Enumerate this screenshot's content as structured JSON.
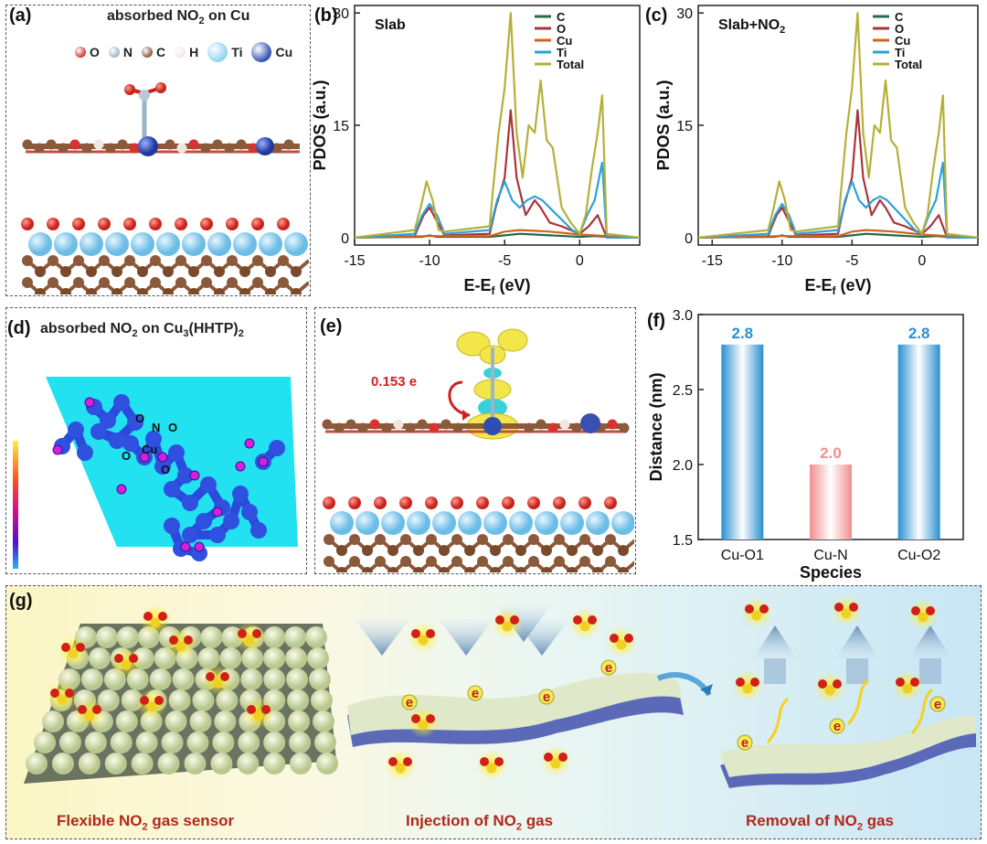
{
  "panels": {
    "a": {
      "label": "(a)",
      "title_pre": "absorbed NO",
      "title_sub": "2",
      "title_post": " on Cu",
      "legend": [
        {
          "name": "O",
          "color": "#d6342f"
        },
        {
          "name": "N",
          "color": "#9fb4c8"
        },
        {
          "name": "C",
          "color": "#8a5a3a"
        },
        {
          "name": "H",
          "color": "#f3e6e0"
        },
        {
          "name": "Ti",
          "color": "#8fd3f0"
        },
        {
          "name": "Cu",
          "color": "#2f4fb0"
        }
      ]
    },
    "b": {
      "label": "(b)"
    },
    "c": {
      "label": "(c)"
    },
    "d": {
      "label": "(d)",
      "title_pre": "absorbed NO",
      "title_sub1": "2",
      "title_mid": " on Cu",
      "title_sub2": "3",
      "title_post": "(HHTP)",
      "title_sub3": "2",
      "atom_labels": [
        "O",
        "N",
        "O",
        "O",
        "Cu",
        "O"
      ]
    },
    "e": {
      "label": "(e)",
      "charge": "0.153 e"
    },
    "f": {
      "label": "(f)"
    },
    "g": {
      "label": "(g)",
      "captions": [
        {
          "pre": "Flexible  NO",
          "sub": "2",
          "post": " gas sensor"
        },
        {
          "pre": "Injection of  NO",
          "sub": "2",
          "post": " gas"
        },
        {
          "pre": "Removal of  NO",
          "sub": "2",
          "post": " gas"
        }
      ],
      "electron": "e"
    }
  },
  "chart_data": [
    {
      "type": "line",
      "title": "Slab",
      "xlabel_pre": "E-E",
      "xlabel_sub": "f",
      "xlabel_post": " (eV)",
      "ylabel": "PDOS (a.u.)",
      "xlim": [
        -15,
        4
      ],
      "ylim": [
        -1,
        31
      ],
      "xticks": [
        -15,
        -10,
        -5,
        0
      ],
      "yticks": [
        0,
        15,
        30
      ],
      "legend_position": "top-right",
      "series": [
        {
          "name": "C",
          "color": "#1f6b4a",
          "x": [
            -15,
            -10.5,
            -10,
            -9.5,
            -6,
            -5,
            -4,
            -3,
            -2,
            -1,
            0,
            1,
            1.8,
            4
          ],
          "y": [
            0,
            0.1,
            0.3,
            0.1,
            0.1,
            0.3,
            0.5,
            0.4,
            0.3,
            0.2,
            0.1,
            0.2,
            0.1,
            0
          ]
        },
        {
          "name": "O",
          "color": "#a8343c",
          "x": [
            -15,
            -11,
            -10.4,
            -10,
            -9.6,
            -9,
            -6,
            -5.6,
            -5,
            -4.6,
            -4.2,
            -3.6,
            -3,
            -2.6,
            -2,
            -1.2,
            -0.6,
            0,
            0.6,
            1.2,
            1.6,
            1.8,
            4
          ],
          "y": [
            0,
            0.2,
            3,
            4,
            2.5,
            0.3,
            0.5,
            4,
            8,
            17,
            8,
            3,
            5,
            4,
            2,
            1.5,
            1,
            0.5,
            1.5,
            3,
            1,
            0,
            0
          ]
        },
        {
          "name": "Cu",
          "color": "#d4621e",
          "x": [
            -15,
            -10,
            -6,
            -5,
            -4,
            -3,
            -2,
            -1,
            0,
            1,
            1.8,
            4
          ],
          "y": [
            0,
            0.2,
            0.2,
            0.8,
            1,
            0.9,
            0.8,
            0.6,
            0.4,
            0.3,
            0.2,
            0
          ]
        },
        {
          "name": "Ti",
          "color": "#2aa3d8",
          "x": [
            -15,
            -11,
            -10.5,
            -10,
            -9.5,
            -9,
            -6,
            -5.5,
            -5,
            -4.5,
            -4,
            -3.5,
            -3,
            -2.5,
            -2,
            -1.5,
            -1,
            -0.5,
            0,
            0.5,
            1,
            1.5,
            1.8,
            4
          ],
          "y": [
            0,
            0.5,
            3,
            4.5,
            3,
            0.5,
            1,
            5,
            7.5,
            5,
            4,
            5,
            5.5,
            5,
            4,
            3,
            2,
            1,
            0.5,
            3,
            5,
            10,
            0,
            0
          ]
        },
        {
          "name": "Total",
          "color": "#b5b037",
          "x": [
            -15,
            -11,
            -10.6,
            -10.2,
            -9.8,
            -9.4,
            -9,
            -6,
            -5.8,
            -5.4,
            -5,
            -4.6,
            -4.2,
            -3.8,
            -3.4,
            -3,
            -2.6,
            -2.2,
            -1.8,
            -1.2,
            -0.6,
            0,
            0.4,
            0.8,
            1.2,
            1.5,
            1.8,
            4
          ],
          "y": [
            0,
            1,
            4,
            7.5,
            5,
            1,
            0.8,
            1.5,
            6,
            14,
            20,
            30,
            14,
            8,
            15,
            14,
            21,
            13,
            12,
            4,
            2,
            0.5,
            3,
            9,
            14,
            19,
            0.5,
            0
          ]
        }
      ]
    },
    {
      "type": "line",
      "title_pre": "Slab+NO",
      "title_sub": "2",
      "xlabel_pre": "E-E",
      "xlabel_sub": "f",
      "xlabel_post": " (eV)",
      "ylabel": "PDOS (a.u.)",
      "xlim": [
        -16,
        4
      ],
      "ylim": [
        -1,
        31
      ],
      "xticks": [
        -15,
        -10,
        -5,
        0
      ],
      "yticks": [
        0,
        15,
        30
      ],
      "legend_position": "top-right",
      "series": [
        {
          "name": "C",
          "color": "#1f6b4a",
          "x": [
            -16,
            -10.5,
            -10,
            -9.5,
            -6,
            -5,
            -4,
            -3,
            -2,
            -1,
            0,
            1,
            1.8,
            4
          ],
          "y": [
            0,
            0.1,
            0.3,
            0.1,
            0.1,
            0.3,
            0.5,
            0.4,
            0.3,
            0.2,
            0.1,
            0.2,
            0.1,
            0
          ]
        },
        {
          "name": "O",
          "color": "#a8343c",
          "x": [
            -16,
            -11,
            -10.4,
            -10,
            -9.6,
            -9,
            -6,
            -5.6,
            -5,
            -4.6,
            -4.2,
            -3.6,
            -3,
            -2.6,
            -2,
            -1.2,
            -0.6,
            0,
            0.6,
            1.2,
            1.6,
            1.8,
            4
          ],
          "y": [
            0,
            0.2,
            3,
            4,
            2.5,
            0.3,
            0.5,
            4,
            8,
            17,
            8,
            3,
            5,
            4,
            2,
            1.5,
            1,
            0.5,
            1.5,
            3,
            1,
            0,
            0
          ]
        },
        {
          "name": "Cu",
          "color": "#d4621e",
          "x": [
            -16,
            -10,
            -6,
            -5,
            -4,
            -3,
            -2,
            -1,
            0,
            1,
            1.8,
            4
          ],
          "y": [
            0,
            0.2,
            0.2,
            0.8,
            1,
            0.9,
            0.8,
            0.6,
            0.4,
            0.3,
            0.2,
            0
          ]
        },
        {
          "name": "Ti",
          "color": "#2aa3d8",
          "x": [
            -16,
            -11,
            -10.5,
            -10,
            -9.5,
            -9,
            -6,
            -5.5,
            -5,
            -4.5,
            -4,
            -3.5,
            -3,
            -2.5,
            -2,
            -1.5,
            -1,
            -0.5,
            0,
            0.5,
            1,
            1.5,
            1.8,
            4
          ],
          "y": [
            0,
            0.5,
            3,
            4.5,
            3,
            0.5,
            1,
            5,
            7.5,
            5,
            4,
            5,
            5.5,
            5,
            4,
            3,
            2,
            1,
            0.5,
            3,
            5,
            10,
            0,
            0
          ]
        },
        {
          "name": "Total",
          "color": "#b5b037",
          "x": [
            -16,
            -11,
            -10.6,
            -10.2,
            -9.8,
            -9.4,
            -9,
            -6,
            -5.8,
            -5.4,
            -5,
            -4.6,
            -4.2,
            -3.8,
            -3.4,
            -3,
            -2.6,
            -2.2,
            -1.8,
            -1.2,
            -0.6,
            0,
            0.4,
            0.8,
            1.2,
            1.5,
            1.8,
            4
          ],
          "y": [
            0,
            1,
            4,
            7.5,
            5,
            1,
            0.8,
            1.5,
            6,
            14,
            20,
            30,
            14,
            8,
            15,
            14,
            21,
            13,
            12,
            4,
            2,
            0.5,
            3,
            9,
            14,
            19,
            0.5,
            0
          ]
        }
      ]
    },
    {
      "type": "bar",
      "categories": [
        "Cu-O1",
        "Cu-N",
        "Cu-O2"
      ],
      "values": [
        2.8,
        2.0,
        2.8
      ],
      "value_labels": [
        "2.8",
        "2.0",
        "2.8"
      ],
      "colors": [
        "#2a8fd0",
        "#f28e8e",
        "#2a8fd0"
      ],
      "xlabel": "Species",
      "ylabel": "Distance (nm)",
      "ylim": [
        1.5,
        3.0
      ],
      "yticks": [
        "1.5",
        "2.0",
        "2.5",
        "3.0"
      ]
    }
  ]
}
